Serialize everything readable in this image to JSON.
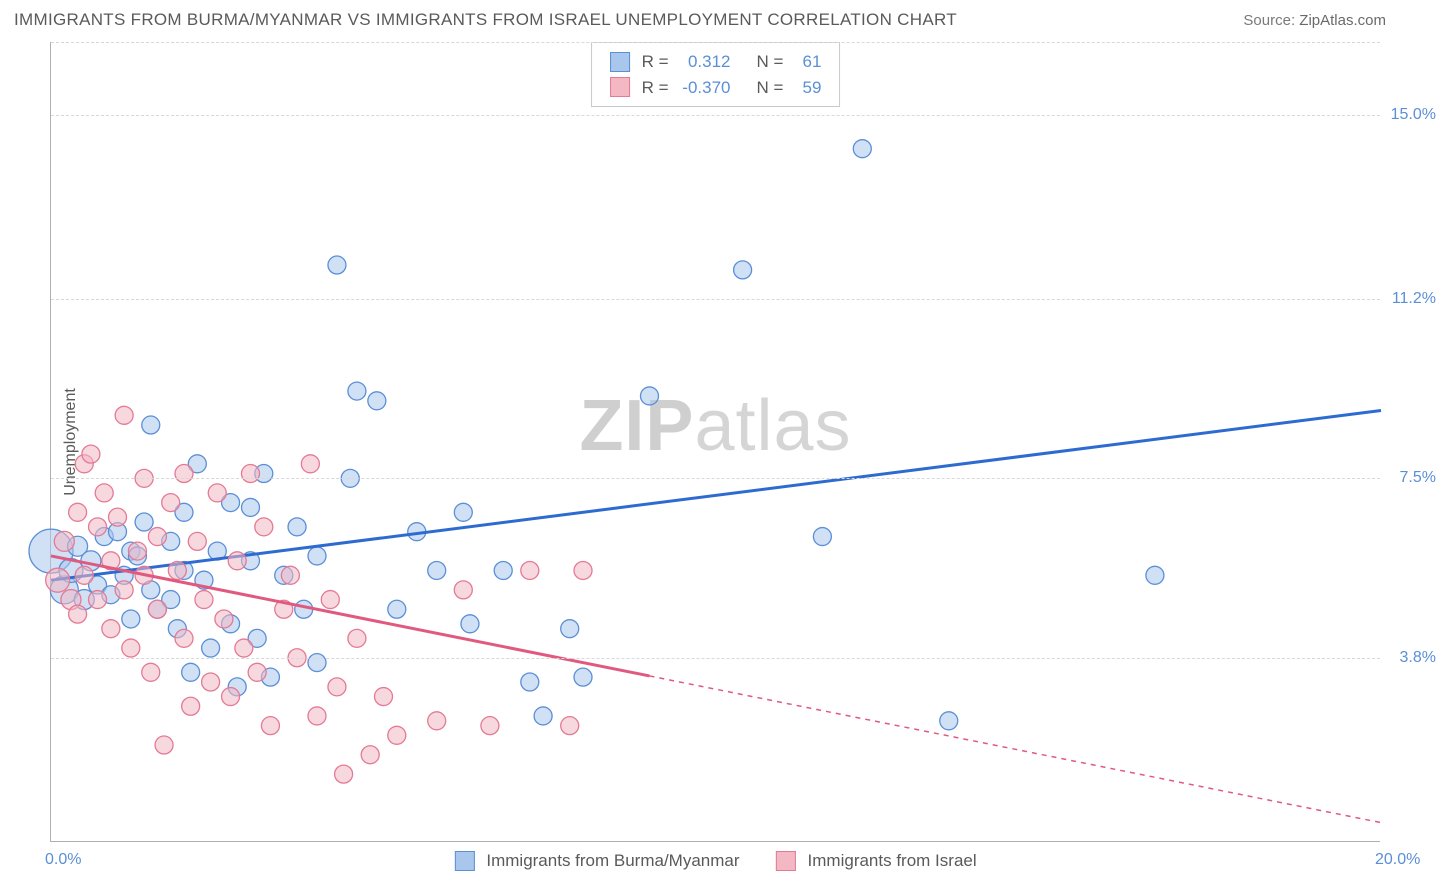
{
  "title": "IMMIGRANTS FROM BURMA/MYANMAR VS IMMIGRANTS FROM ISRAEL UNEMPLOYMENT CORRELATION CHART",
  "source_label": "Source:",
  "source_name": "ZipAtlas.com",
  "watermark_bold": "ZIP",
  "watermark_light": "atlas",
  "y_axis_title": "Unemployment",
  "chart": {
    "type": "scatter",
    "xlim": [
      0,
      20
    ],
    "ylim": [
      0,
      16.5
    ],
    "x_ticks": [
      {
        "value": 0.0,
        "label": "0.0%"
      },
      {
        "value": 20.0,
        "label": "20.0%"
      }
    ],
    "y_ticks": [
      {
        "value": 3.8,
        "label": "3.8%"
      },
      {
        "value": 7.5,
        "label": "7.5%"
      },
      {
        "value": 11.2,
        "label": "11.2%"
      },
      {
        "value": 15.0,
        "label": "15.0%"
      }
    ],
    "grid_color": "#d8d8d8",
    "background": "#ffffff",
    "series": [
      {
        "name": "Immigrants from Burma/Myanmar",
        "color_fill": "#a9c7ec",
        "color_stroke": "#5b8fd6",
        "fill_opacity": 0.55,
        "marker_r": 9,
        "r_stat": "0.312",
        "n_stat": "61",
        "trend": {
          "x1": 0,
          "y1": 5.4,
          "x2": 20,
          "y2": 8.9,
          "solid_to_x": 20,
          "color": "#2e6bd0",
          "width": 3
        },
        "points": [
          {
            "x": 0.0,
            "y": 6.0,
            "r": 22
          },
          {
            "x": 0.2,
            "y": 5.2,
            "r": 14
          },
          {
            "x": 0.3,
            "y": 5.6,
            "r": 12
          },
          {
            "x": 0.4,
            "y": 6.1,
            "r": 10
          },
          {
            "x": 0.5,
            "y": 5.0,
            "r": 10
          },
          {
            "x": 0.6,
            "y": 5.8,
            "r": 10
          },
          {
            "x": 0.7,
            "y": 5.3,
            "r": 9
          },
          {
            "x": 0.8,
            "y": 6.3,
            "r": 9
          },
          {
            "x": 0.9,
            "y": 5.1,
            "r": 9
          },
          {
            "x": 1.0,
            "y": 6.4,
            "r": 9
          },
          {
            "x": 1.1,
            "y": 5.5,
            "r": 9
          },
          {
            "x": 1.2,
            "y": 4.6,
            "r": 9
          },
          {
            "x": 1.2,
            "y": 6.0,
            "r": 9
          },
          {
            "x": 1.3,
            "y": 5.9,
            "r": 9
          },
          {
            "x": 1.4,
            "y": 6.6,
            "r": 9
          },
          {
            "x": 1.5,
            "y": 5.2,
            "r": 9
          },
          {
            "x": 1.5,
            "y": 8.6,
            "r": 9
          },
          {
            "x": 1.6,
            "y": 4.8,
            "r": 9
          },
          {
            "x": 1.8,
            "y": 6.2,
            "r": 9
          },
          {
            "x": 1.8,
            "y": 5.0,
            "r": 9
          },
          {
            "x": 1.9,
            "y": 4.4,
            "r": 9
          },
          {
            "x": 2.0,
            "y": 6.8,
            "r": 9
          },
          {
            "x": 2.0,
            "y": 5.6,
            "r": 9
          },
          {
            "x": 2.1,
            "y": 3.5,
            "r": 9
          },
          {
            "x": 2.2,
            "y": 7.8,
            "r": 9
          },
          {
            "x": 2.3,
            "y": 5.4,
            "r": 9
          },
          {
            "x": 2.4,
            "y": 4.0,
            "r": 9
          },
          {
            "x": 2.5,
            "y": 6.0,
            "r": 9
          },
          {
            "x": 2.7,
            "y": 7.0,
            "r": 9
          },
          {
            "x": 2.7,
            "y": 4.5,
            "r": 9
          },
          {
            "x": 2.8,
            "y": 3.2,
            "r": 9
          },
          {
            "x": 3.0,
            "y": 5.8,
            "r": 9
          },
          {
            "x": 3.0,
            "y": 6.9,
            "r": 9
          },
          {
            "x": 3.1,
            "y": 4.2,
            "r": 9
          },
          {
            "x": 3.2,
            "y": 7.6,
            "r": 9
          },
          {
            "x": 3.3,
            "y": 3.4,
            "r": 9
          },
          {
            "x": 3.5,
            "y": 5.5,
            "r": 9
          },
          {
            "x": 3.7,
            "y": 6.5,
            "r": 9
          },
          {
            "x": 3.8,
            "y": 4.8,
            "r": 9
          },
          {
            "x": 4.0,
            "y": 3.7,
            "r": 9
          },
          {
            "x": 4.0,
            "y": 5.9,
            "r": 9
          },
          {
            "x": 4.3,
            "y": 11.9,
            "r": 9
          },
          {
            "x": 4.5,
            "y": 7.5,
            "r": 9
          },
          {
            "x": 4.6,
            "y": 9.3,
            "r": 9
          },
          {
            "x": 4.9,
            "y": 9.1,
            "r": 9
          },
          {
            "x": 5.2,
            "y": 4.8,
            "r": 9
          },
          {
            "x": 5.5,
            "y": 6.4,
            "r": 9
          },
          {
            "x": 5.8,
            "y": 5.6,
            "r": 9
          },
          {
            "x": 6.2,
            "y": 6.8,
            "r": 9
          },
          {
            "x": 6.3,
            "y": 4.5,
            "r": 9
          },
          {
            "x": 6.8,
            "y": 5.6,
            "r": 9
          },
          {
            "x": 7.2,
            "y": 3.3,
            "r": 9
          },
          {
            "x": 7.4,
            "y": 2.6,
            "r": 9
          },
          {
            "x": 7.8,
            "y": 4.4,
            "r": 9
          },
          {
            "x": 8.0,
            "y": 3.4,
            "r": 9
          },
          {
            "x": 9.0,
            "y": 9.2,
            "r": 9
          },
          {
            "x": 10.4,
            "y": 11.8,
            "r": 9
          },
          {
            "x": 11.6,
            "y": 6.3,
            "r": 9
          },
          {
            "x": 12.2,
            "y": 14.3,
            "r": 9
          },
          {
            "x": 13.5,
            "y": 2.5,
            "r": 9
          },
          {
            "x": 16.6,
            "y": 5.5,
            "r": 9
          }
        ]
      },
      {
        "name": "Immigrants from Israel",
        "color_fill": "#f3b8c4",
        "color_stroke": "#e47a94",
        "fill_opacity": 0.55,
        "marker_r": 9,
        "r_stat": "-0.370",
        "n_stat": "59",
        "trend": {
          "x1": 0,
          "y1": 5.9,
          "x2": 20,
          "y2": 0.4,
          "solid_to_x": 9.0,
          "color": "#e05a80",
          "width": 3
        },
        "points": [
          {
            "x": 0.1,
            "y": 5.4,
            "r": 12
          },
          {
            "x": 0.2,
            "y": 6.2,
            "r": 10
          },
          {
            "x": 0.3,
            "y": 5.0,
            "r": 10
          },
          {
            "x": 0.4,
            "y": 6.8,
            "r": 9
          },
          {
            "x": 0.4,
            "y": 4.7,
            "r": 9
          },
          {
            "x": 0.5,
            "y": 7.8,
            "r": 9
          },
          {
            "x": 0.5,
            "y": 5.5,
            "r": 9
          },
          {
            "x": 0.6,
            "y": 8.0,
            "r": 9
          },
          {
            "x": 0.7,
            "y": 6.5,
            "r": 9
          },
          {
            "x": 0.7,
            "y": 5.0,
            "r": 9
          },
          {
            "x": 0.8,
            "y": 7.2,
            "r": 9
          },
          {
            "x": 0.9,
            "y": 5.8,
            "r": 9
          },
          {
            "x": 0.9,
            "y": 4.4,
            "r": 9
          },
          {
            "x": 1.0,
            "y": 6.7,
            "r": 9
          },
          {
            "x": 1.1,
            "y": 8.8,
            "r": 9
          },
          {
            "x": 1.1,
            "y": 5.2,
            "r": 9
          },
          {
            "x": 1.2,
            "y": 4.0,
            "r": 9
          },
          {
            "x": 1.3,
            "y": 6.0,
            "r": 9
          },
          {
            "x": 1.4,
            "y": 7.5,
            "r": 9
          },
          {
            "x": 1.4,
            "y": 5.5,
            "r": 9
          },
          {
            "x": 1.5,
            "y": 3.5,
            "r": 9
          },
          {
            "x": 1.6,
            "y": 6.3,
            "r": 9
          },
          {
            "x": 1.6,
            "y": 4.8,
            "r": 9
          },
          {
            "x": 1.7,
            "y": 2.0,
            "r": 9
          },
          {
            "x": 1.8,
            "y": 7.0,
            "r": 9
          },
          {
            "x": 1.9,
            "y": 5.6,
            "r": 9
          },
          {
            "x": 2.0,
            "y": 4.2,
            "r": 9
          },
          {
            "x": 2.0,
            "y": 7.6,
            "r": 9
          },
          {
            "x": 2.1,
            "y": 2.8,
            "r": 9
          },
          {
            "x": 2.2,
            "y": 6.2,
            "r": 9
          },
          {
            "x": 2.3,
            "y": 5.0,
            "r": 9
          },
          {
            "x": 2.4,
            "y": 3.3,
            "r": 9
          },
          {
            "x": 2.5,
            "y": 7.2,
            "r": 9
          },
          {
            "x": 2.6,
            "y": 4.6,
            "r": 9
          },
          {
            "x": 2.7,
            "y": 3.0,
            "r": 9
          },
          {
            "x": 2.8,
            "y": 5.8,
            "r": 9
          },
          {
            "x": 2.9,
            "y": 4.0,
            "r": 9
          },
          {
            "x": 3.0,
            "y": 7.6,
            "r": 9
          },
          {
            "x": 3.1,
            "y": 3.5,
            "r": 9
          },
          {
            "x": 3.2,
            "y": 6.5,
            "r": 9
          },
          {
            "x": 3.3,
            "y": 2.4,
            "r": 9
          },
          {
            "x": 3.5,
            "y": 4.8,
            "r": 9
          },
          {
            "x": 3.6,
            "y": 5.5,
            "r": 9
          },
          {
            "x": 3.7,
            "y": 3.8,
            "r": 9
          },
          {
            "x": 3.9,
            "y": 7.8,
            "r": 9
          },
          {
            "x": 4.0,
            "y": 2.6,
            "r": 9
          },
          {
            "x": 4.2,
            "y": 5.0,
            "r": 9
          },
          {
            "x": 4.3,
            "y": 3.2,
            "r": 9
          },
          {
            "x": 4.4,
            "y": 1.4,
            "r": 9
          },
          {
            "x": 4.6,
            "y": 4.2,
            "r": 9
          },
          {
            "x": 4.8,
            "y": 1.8,
            "r": 9
          },
          {
            "x": 5.0,
            "y": 3.0,
            "r": 9
          },
          {
            "x": 5.2,
            "y": 2.2,
            "r": 9
          },
          {
            "x": 5.8,
            "y": 2.5,
            "r": 9
          },
          {
            "x": 6.2,
            "y": 5.2,
            "r": 9
          },
          {
            "x": 6.6,
            "y": 2.4,
            "r": 9
          },
          {
            "x": 7.2,
            "y": 5.6,
            "r": 9
          },
          {
            "x": 7.8,
            "y": 2.4,
            "r": 9
          },
          {
            "x": 8.0,
            "y": 5.6,
            "r": 9
          }
        ]
      }
    ]
  },
  "legend_items": [
    {
      "label": "Immigrants from Burma/Myanmar",
      "fill": "#a9c7ec",
      "stroke": "#5b8fd6"
    },
    {
      "label": "Immigrants from Israel",
      "fill": "#f3b8c4",
      "stroke": "#e47a94"
    }
  ],
  "stats_box": {
    "r_label": "R =",
    "n_label": "N ="
  }
}
